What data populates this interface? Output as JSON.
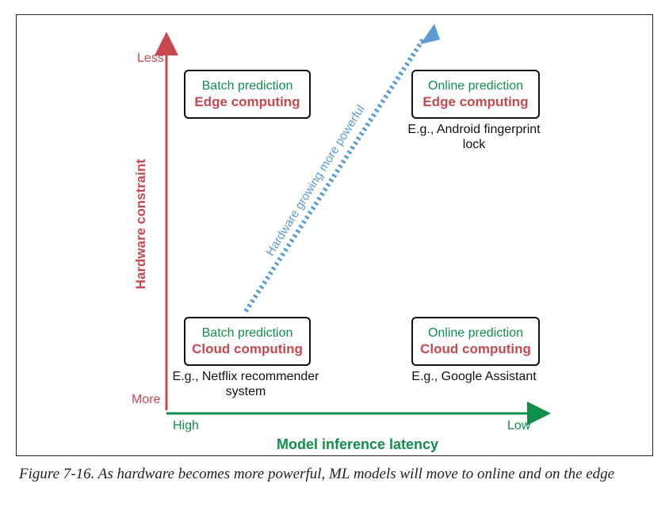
{
  "colors": {
    "constraint_red": "#c8484f",
    "latency_green": "#0f8f4a",
    "hardware_blue": "#5b9bd0"
  },
  "y_axis": {
    "label": "Hardware constraint",
    "top_label": "Less",
    "bottom_label": "More"
  },
  "x_axis": {
    "label": "Model inference latency",
    "left_label": "High",
    "right_label": "Low"
  },
  "diagonal": {
    "label": "Hardware growing more powerful"
  },
  "boxes": {
    "top_left": {
      "line1": "Batch prediction",
      "line2": "Edge computing"
    },
    "top_right": {
      "line1": "Online prediction",
      "line2": "Edge computing"
    },
    "bottom_left": {
      "line1": "Batch prediction",
      "line2": "Cloud computing"
    },
    "bottom_right": {
      "line1": "Online prediction",
      "line2": "Cloud computing"
    }
  },
  "examples": {
    "top_right": {
      "line1": "E.g., Android fingerprint",
      "line2": "lock"
    },
    "bottom_left": {
      "line1": "E.g., Netflix recommender",
      "line2": "system"
    },
    "bottom_right": {
      "line1": "E.g., Google Assistant"
    }
  },
  "caption": "Figure 7-16. As hardware becomes more powerful, ML models will move to online and on the edge"
}
